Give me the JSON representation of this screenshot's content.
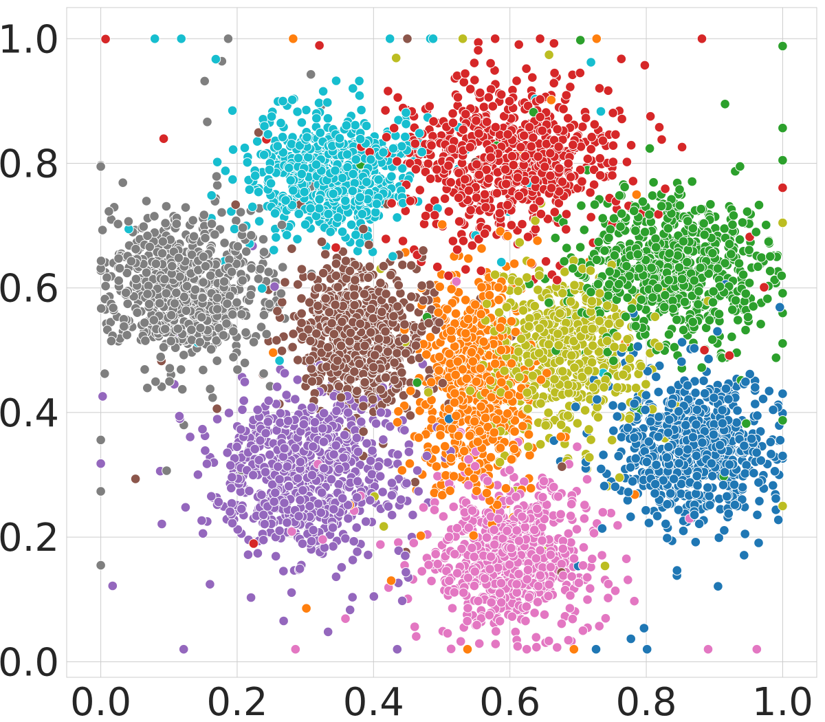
{
  "chart_data": {
    "type": "scatter",
    "title": "",
    "xlabel": "",
    "ylabel": "",
    "xlim": [
      -0.05,
      1.05
    ],
    "ylim": [
      -0.025,
      1.05
    ],
    "xticks": [
      0.0,
      0.2,
      0.4,
      0.6,
      0.8,
      1.0
    ],
    "yticks": [
      0.0,
      0.2,
      0.4,
      0.6,
      0.8,
      1.0
    ],
    "xtick_labels": [
      "0.0",
      "0.2",
      "0.4",
      "0.6",
      "0.8",
      "1.0"
    ],
    "ytick_labels": [
      "0.0",
      "0.2",
      "0.4",
      "0.6",
      "0.8",
      "1.0"
    ],
    "grid": true,
    "legend": "none",
    "series": [
      {
        "color": "#1f77b4",
        "center": [
          0.87,
          0.34
        ],
        "spread": [
          0.06,
          0.06
        ],
        "count": 650
      },
      {
        "color": "#ff7f0e",
        "center": [
          0.55,
          0.45
        ],
        "spread": [
          0.04,
          0.09
        ],
        "count": 600
      },
      {
        "color": "#2ca02c",
        "center": [
          0.84,
          0.63
        ],
        "spread": [
          0.07,
          0.06
        ],
        "count": 650
      },
      {
        "color": "#d62728",
        "center": [
          0.6,
          0.8
        ],
        "spread": [
          0.08,
          0.06
        ],
        "count": 700
      },
      {
        "color": "#9467bd",
        "center": [
          0.3,
          0.31
        ],
        "spread": [
          0.07,
          0.07
        ],
        "count": 700
      },
      {
        "color": "#8c564b",
        "center": [
          0.38,
          0.53
        ],
        "spread": [
          0.05,
          0.06
        ],
        "count": 650
      },
      {
        "color": "#e377c2",
        "center": [
          0.6,
          0.17
        ],
        "spread": [
          0.06,
          0.06
        ],
        "count": 650
      },
      {
        "color": "#7f7f7f",
        "center": [
          0.12,
          0.6
        ],
        "spread": [
          0.06,
          0.06
        ],
        "count": 650
      },
      {
        "color": "#bcbd22",
        "center": [
          0.68,
          0.49
        ],
        "spread": [
          0.06,
          0.07
        ],
        "count": 550
      },
      {
        "color": "#17becf",
        "center": [
          0.34,
          0.78
        ],
        "spread": [
          0.06,
          0.05
        ],
        "count": 650
      }
    ]
  }
}
